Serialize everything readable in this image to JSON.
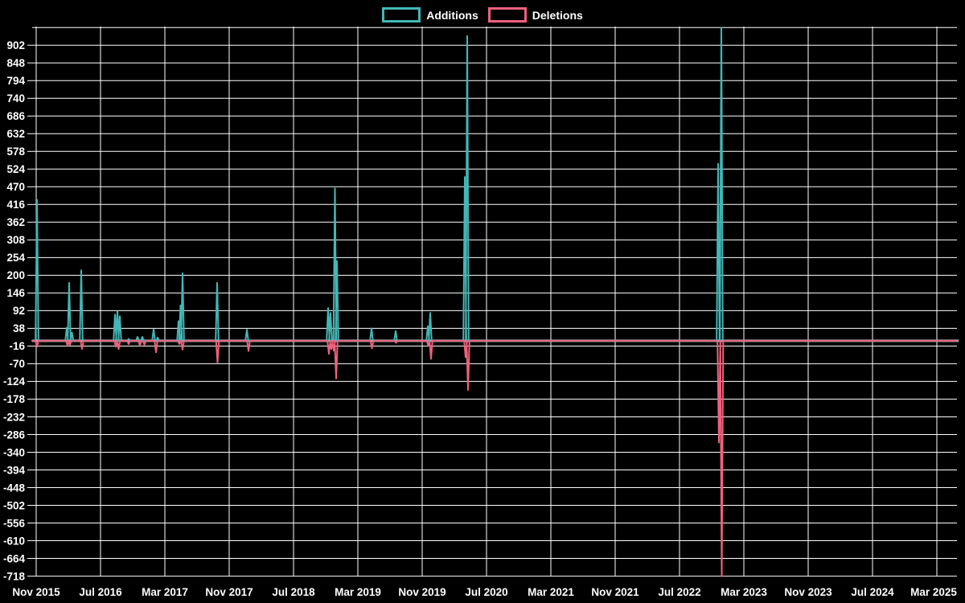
{
  "chart_data": {
    "type": "line",
    "title": "",
    "xlabel": "",
    "ylabel": "",
    "x_unit": "months since Nov 2015 (weekly git code-frequency style data)",
    "x_tick_labels": [
      "Nov 2015",
      "Jul 2016",
      "Mar 2017",
      "Nov 2017",
      "Jul 2018",
      "Mar 2019",
      "Nov 2019",
      "Jul 2020",
      "Mar 2021",
      "Nov 2021",
      "Jul 2022",
      "Mar 2023",
      "Nov 2023",
      "Jul 2024",
      "Mar 2025"
    ],
    "x_tick_month_step": 8,
    "y_tick_values": [
      902,
      848,
      794,
      740,
      686,
      632,
      578,
      524,
      470,
      416,
      362,
      308,
      254,
      200,
      146,
      92,
      38,
      -16,
      -70,
      -124,
      -178,
      -232,
      -286,
      -340,
      -394,
      -448,
      -502,
      -556,
      -610,
      -664,
      -718
    ],
    "y_grid_step": 54,
    "y_grid_top_value": 956,
    "ylim": [
      -724,
      959
    ],
    "xlim_months": [
      -0.5,
      114.5
    ],
    "grid_on": true,
    "legend_position": "top-center",
    "colors": {
      "background": "#000000",
      "grid": "#ffffff",
      "text": "#ffffff",
      "baseline": "#a8c2ce",
      "additions": "#43b7b7",
      "deletions": "#f2607d"
    },
    "baseline_value": 0,
    "spike_half_width_months": 0.18,
    "series": [
      {
        "name": "Additions",
        "color": "#43b7b7",
        "events": [
          [
            0.1,
            430
          ],
          [
            3.8,
            40
          ],
          [
            4.1,
            177
          ],
          [
            4.45,
            25
          ],
          [
            5.6,
            215
          ],
          [
            9.8,
            80
          ],
          [
            10.1,
            90
          ],
          [
            10.4,
            75
          ],
          [
            11.5,
            6
          ],
          [
            12.6,
            12
          ],
          [
            13.2,
            12
          ],
          [
            14.6,
            35
          ],
          [
            15.1,
            10
          ],
          [
            17.7,
            60
          ],
          [
            17.95,
            108
          ],
          [
            18.2,
            206
          ],
          [
            22.5,
            177
          ],
          [
            26.2,
            34
          ],
          [
            36.3,
            100
          ],
          [
            36.6,
            85
          ],
          [
            37.15,
            465
          ],
          [
            37.4,
            243
          ],
          [
            41.7,
            38
          ],
          [
            44.7,
            30
          ],
          [
            48.7,
            45
          ],
          [
            49.0,
            85
          ],
          [
            53.3,
            500
          ],
          [
            53.6,
            930
          ],
          [
            84.8,
            540
          ],
          [
            85.2,
            955
          ]
        ]
      },
      {
        "name": "Deletions",
        "color": "#f2607d",
        "events": [
          [
            0.1,
            -18
          ],
          [
            3.9,
            -15
          ],
          [
            4.2,
            -12
          ],
          [
            5.7,
            -25
          ],
          [
            9.9,
            -18
          ],
          [
            10.25,
            -25
          ],
          [
            11.5,
            -10
          ],
          [
            12.9,
            -14
          ],
          [
            13.45,
            -12
          ],
          [
            14.9,
            -35
          ],
          [
            17.8,
            -10
          ],
          [
            18.2,
            -27
          ],
          [
            22.55,
            -66
          ],
          [
            26.4,
            -31
          ],
          [
            36.4,
            -40
          ],
          [
            36.7,
            -25
          ],
          [
            37.0,
            -30
          ],
          [
            37.3,
            -115
          ],
          [
            41.75,
            -23
          ],
          [
            44.75,
            -6
          ],
          [
            48.75,
            -15
          ],
          [
            49.1,
            -55
          ],
          [
            53.4,
            -50
          ],
          [
            53.7,
            -150
          ],
          [
            84.9,
            -310
          ],
          [
            85.25,
            -718
          ]
        ]
      }
    ]
  }
}
